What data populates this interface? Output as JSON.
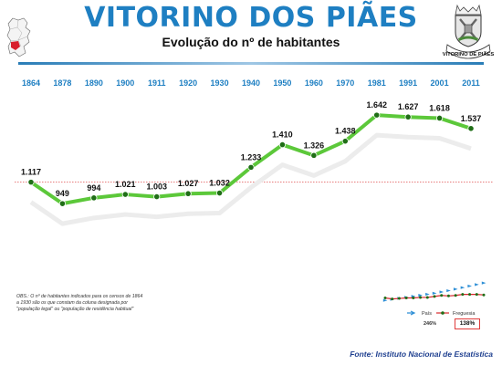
{
  "header": {
    "title": "VITORINO DOS PIÃES",
    "subtitle": "Evolução do nº de habitantes"
  },
  "crest_text": "VITORINO DE PIÃES",
  "note": "OBS.: O nº de habitantes indicados para os censos de 1864 a 1930 são os que constam da coluna designada por \"população legal\" ou \"população de residência habitual\"",
  "source": "Fonte: Instituto Nacional de Estatística",
  "colors": {
    "title": "#1e7fc2",
    "line": "#5cc83a",
    "marker": "#1f6e16",
    "reference": "#e05050"
  },
  "chart_data": {
    "type": "line",
    "title": "Evolução do nº de habitantes",
    "categories": [
      "1864",
      "1878",
      "1890",
      "1900",
      "1911",
      "1920",
      "1930",
      "1940",
      "1950",
      "1960",
      "1970",
      "1981",
      "1991",
      "2001",
      "2011"
    ],
    "values": [
      1117,
      949,
      994,
      1021,
      1003,
      1027,
      1032,
      1233,
      1410,
      1326,
      1438,
      1642,
      1627,
      1618,
      1537
    ],
    "value_labels": [
      "1.117",
      "949",
      "994",
      "1.021",
      "1.003",
      "1.027",
      "1.032",
      "1.233",
      "1.410",
      "1.326",
      "1.438",
      "1.642",
      "1.627",
      "1.618",
      "1.537"
    ],
    "ylim": [
      800,
      1800
    ],
    "reference_line": 1117,
    "grid": false
  },
  "mini_chart": {
    "legend": [
      "País",
      "Freguesia"
    ],
    "values": [
      "246%",
      "138%"
    ],
    "pais_trend": [
      10,
      14,
      18,
      22,
      26,
      30,
      34,
      38,
      43,
      48,
      54,
      60,
      66,
      72,
      78
    ],
    "freguesia_trend": [
      10,
      8,
      9,
      10,
      10,
      11,
      11,
      13,
      15,
      14,
      15,
      17,
      17,
      17,
      16
    ]
  }
}
